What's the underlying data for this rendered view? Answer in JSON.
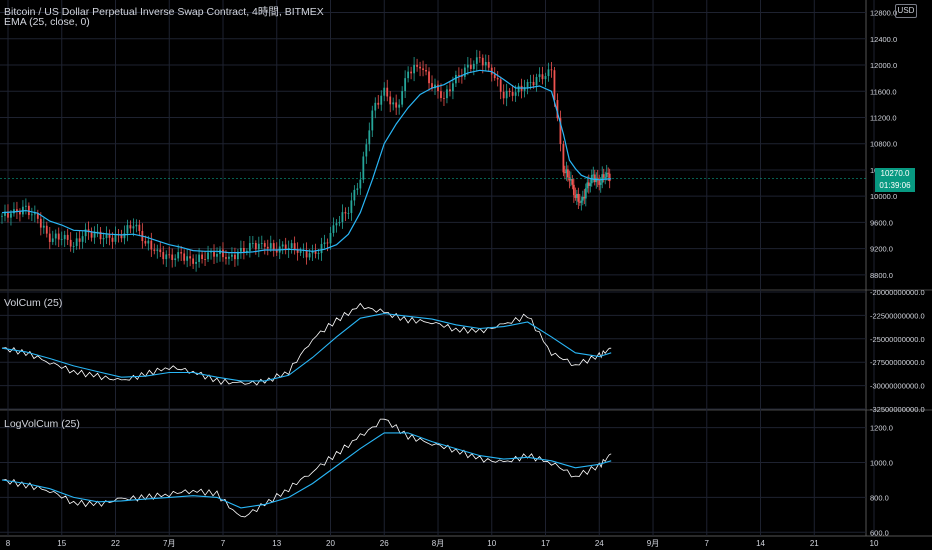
{
  "header": {
    "title": "Bitcoin / US Dollar Perpetual Inverse Swap Contract, 4時間, BITMEX",
    "indicator": "EMA (25, close, 0)",
    "currency_badge": "USD"
  },
  "price_badges": {
    "last_price": "10270.0",
    "countdown": "01:39:06"
  },
  "chart_data": [
    {
      "type": "candlestick",
      "title": "Bitcoin / US Dollar Perpetual Inverse Swap Contract, 4時間, BITMEX",
      "overlay": "EMA (25, close, 0)",
      "y_ticks": [
        "12800.0",
        "12400.0",
        "12000.0",
        "11600.0",
        "11200.0",
        "10800.0",
        "10400.0",
        "10000.0",
        "9600.0",
        "9200.0",
        "8800.0"
      ],
      "ylim": [
        8600,
        12900
      ],
      "x_ticks": [
        "8",
        "15",
        "22",
        "7月",
        "7",
        "13",
        "20",
        "26",
        "8月",
        "10",
        "17",
        "24",
        "9月",
        "7",
        "14",
        "21",
        "10"
      ],
      "last_price": 10270,
      "x": [
        0,
        2,
        4,
        6,
        8,
        10,
        12,
        14,
        16,
        18,
        20,
        22,
        24,
        26,
        28,
        30,
        32,
        34,
        36,
        38,
        40,
        42,
        44,
        46,
        48,
        50,
        52,
        54,
        56,
        58,
        60,
        62,
        64,
        66,
        68,
        70,
        72,
        74,
        76,
        78,
        80,
        82,
        84,
        86,
        88,
        90,
        92,
        94
      ],
      "close": [
        9700,
        9750,
        9800,
        9650,
        9350,
        9400,
        9250,
        9450,
        9400,
        9350,
        9400,
        9600,
        9300,
        9150,
        9050,
        9100,
        9000,
        9100,
        9150,
        9050,
        9150,
        9250,
        9250,
        9200,
        9250,
        9150,
        9100,
        9250,
        9600,
        9800,
        10300,
        11300,
        11600,
        11300,
        11900,
        12000,
        11700,
        11500,
        11800,
        11950,
        12100,
        11900,
        11550,
        11600,
        11700,
        11800,
        11900,
        10400
      ],
      "ema": [
        9750,
        9760,
        9780,
        9740,
        9620,
        9560,
        9480,
        9470,
        9440,
        9420,
        9410,
        9420,
        9380,
        9320,
        9260,
        9220,
        9170,
        9160,
        9160,
        9140,
        9140,
        9150,
        9180,
        9180,
        9190,
        9180,
        9160,
        9190,
        9260,
        9420,
        9750,
        10250,
        10800,
        11100,
        11350,
        11550,
        11650,
        11700,
        11800,
        11880,
        11920,
        11900,
        11780,
        11650,
        11650,
        11680,
        11600,
        10950
      ],
      "x2": [
        94,
        95,
        96,
        97,
        98,
        99,
        100,
        101,
        102
      ],
      "close2": [
        10100,
        10300,
        10000,
        9900,
        10150,
        10300,
        10200,
        10350,
        10270
      ],
      "ema2": [
        10750,
        10550,
        10420,
        10320,
        10280,
        10260,
        10250,
        10260,
        10265
      ]
    },
    {
      "type": "line",
      "title": "VolCum (25)",
      "y_ticks": [
        "-20000000000.0",
        "-22500000000.0",
        "-25000000000.0",
        "-27500000000.0",
        "-30000000000.0",
        "-32500000000.0"
      ],
      "ylim": [
        -32500000000,
        -20000000000
      ],
      "x": [
        0,
        4,
        8,
        12,
        16,
        20,
        24,
        28,
        32,
        36,
        40,
        44,
        48,
        52,
        56,
        60,
        64,
        68,
        72,
        76,
        80,
        84,
        88,
        92,
        96,
        100,
        102
      ],
      "values": [
        -26000000000,
        -26500000000,
        -27500000000,
        -28500000000,
        -29000000000,
        -29500000000,
        -28800000000,
        -28000000000,
        -28500000000,
        -29500000000,
        -29800000000,
        -29600000000,
        -28500000000,
        -25000000000,
        -23000000000,
        -21500000000,
        -22200000000,
        -23000000000,
        -23200000000,
        -24000000000,
        -24200000000,
        -23500000000,
        -22500000000,
        -26500000000,
        -27800000000,
        -26800000000,
        -26000000000
      ],
      "ema": [
        -26000000000,
        -26400000000,
        -27100000000,
        -27900000000,
        -28500000000,
        -29100000000,
        -29000000000,
        -28600000000,
        -28600000000,
        -29100000000,
        -29500000000,
        -29500000000,
        -28900000000,
        -27000000000,
        -24800000000,
        -22800000000,
        -22300000000,
        -22600000000,
        -22900000000,
        -23500000000,
        -23900000000,
        -23700000000,
        -23200000000,
        -24800000000,
        -26500000000,
        -26900000000,
        -26500000000
      ]
    },
    {
      "type": "line",
      "title": "LogVolCum (25)",
      "y_ticks": [
        "1200.0",
        "1000.0",
        "800.0",
        "600.0"
      ],
      "ylim": [
        590,
        1290
      ],
      "x": [
        0,
        4,
        8,
        12,
        16,
        20,
        24,
        28,
        32,
        36,
        40,
        44,
        48,
        52,
        56,
        60,
        64,
        68,
        72,
        76,
        80,
        84,
        88,
        92,
        96,
        100,
        102
      ],
      "values": [
        900,
        870,
        840,
        770,
        760,
        790,
        800,
        820,
        840,
        820,
        680,
        760,
        850,
        950,
        1050,
        1150,
        1250,
        1150,
        1110,
        1070,
        1020,
        1000,
        1040,
        1000,
        920,
        980,
        1050
      ],
      "ema": [
        900,
        880,
        850,
        800,
        775,
        780,
        790,
        800,
        810,
        800,
        740,
        760,
        800,
        880,
        980,
        1080,
        1170,
        1170,
        1120,
        1080,
        1040,
        1020,
        1030,
        1010,
        970,
        990,
        1010
      ]
    }
  ],
  "colors": {
    "up": "#26a69a",
    "down": "#ef5350",
    "line": "#ffffff",
    "ema": "#29b6f6",
    "grid": "#1e2230",
    "price_badge": "#089981"
  }
}
